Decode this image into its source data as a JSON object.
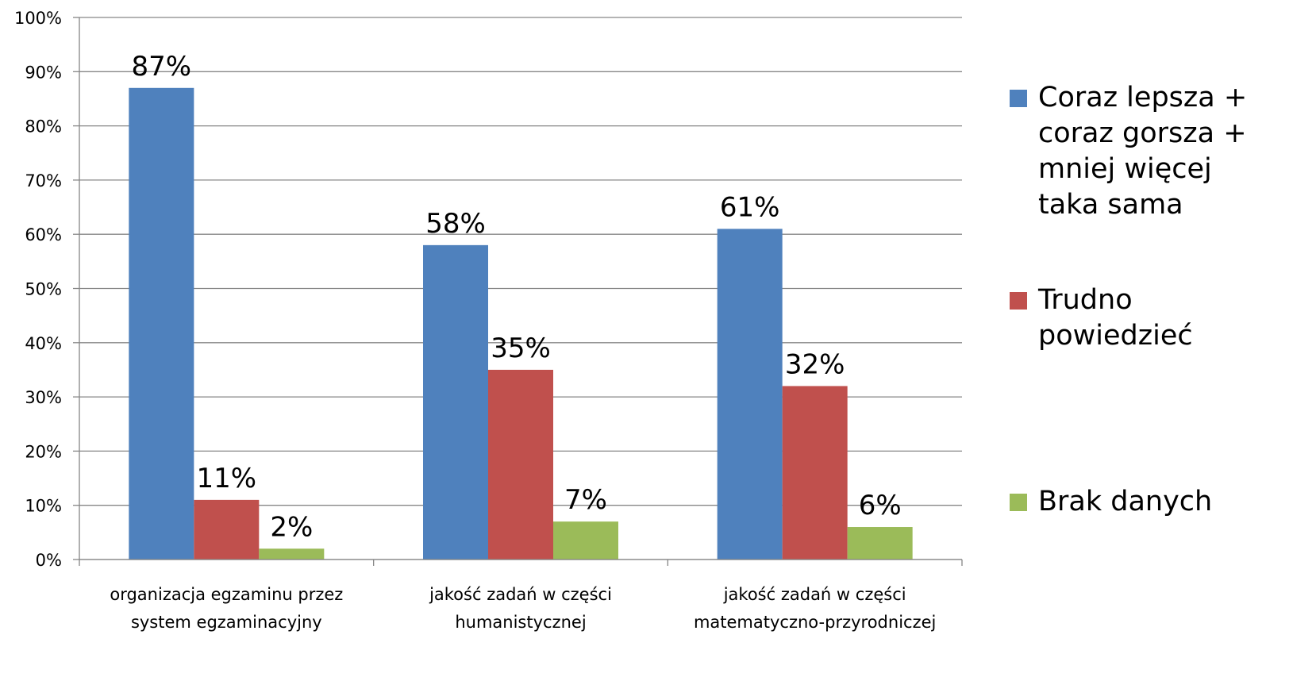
{
  "chart_data": {
    "type": "bar",
    "categories": [
      "organizacja egzaminu przez system egzaminacyjny",
      "jakość zadań w części humanistycznej",
      "jakość zadań w części matematyczno-przyrodniczej"
    ],
    "series": [
      {
        "name": "Coraz lepsza + coraz gorsza + mniej więcej taka sama",
        "color": "#4f81bd",
        "values": [
          87,
          58,
          61
        ],
        "value_labels": [
          "87%",
          "58%",
          "61%"
        ]
      },
      {
        "name": "Trudno powiedzieć",
        "color": "#c0504d",
        "values": [
          11,
          35,
          32
        ],
        "value_labels": [
          "11%",
          "35%",
          "32%"
        ]
      },
      {
        "name": "Brak danych",
        "color": "#9bbb59",
        "values": [
          2,
          7,
          6
        ],
        "value_labels": [
          "2%",
          "7%",
          "6%"
        ]
      }
    ],
    "ylim": [
      0,
      100
    ],
    "yticks": [
      {
        "value": 0,
        "label": "0%"
      },
      {
        "value": 10,
        "label": "10%"
      },
      {
        "value": 20,
        "label": "20%"
      },
      {
        "value": 30,
        "label": "30%"
      },
      {
        "value": 40,
        "label": "40%"
      },
      {
        "value": 50,
        "label": "50%"
      },
      {
        "value": 60,
        "label": "60%"
      },
      {
        "value": 70,
        "label": "70%"
      },
      {
        "value": 80,
        "label": "80%"
      },
      {
        "value": 90,
        "label": "90%"
      },
      {
        "value": 100,
        "label": "100%"
      }
    ],
    "grid": true,
    "legend": "right"
  }
}
